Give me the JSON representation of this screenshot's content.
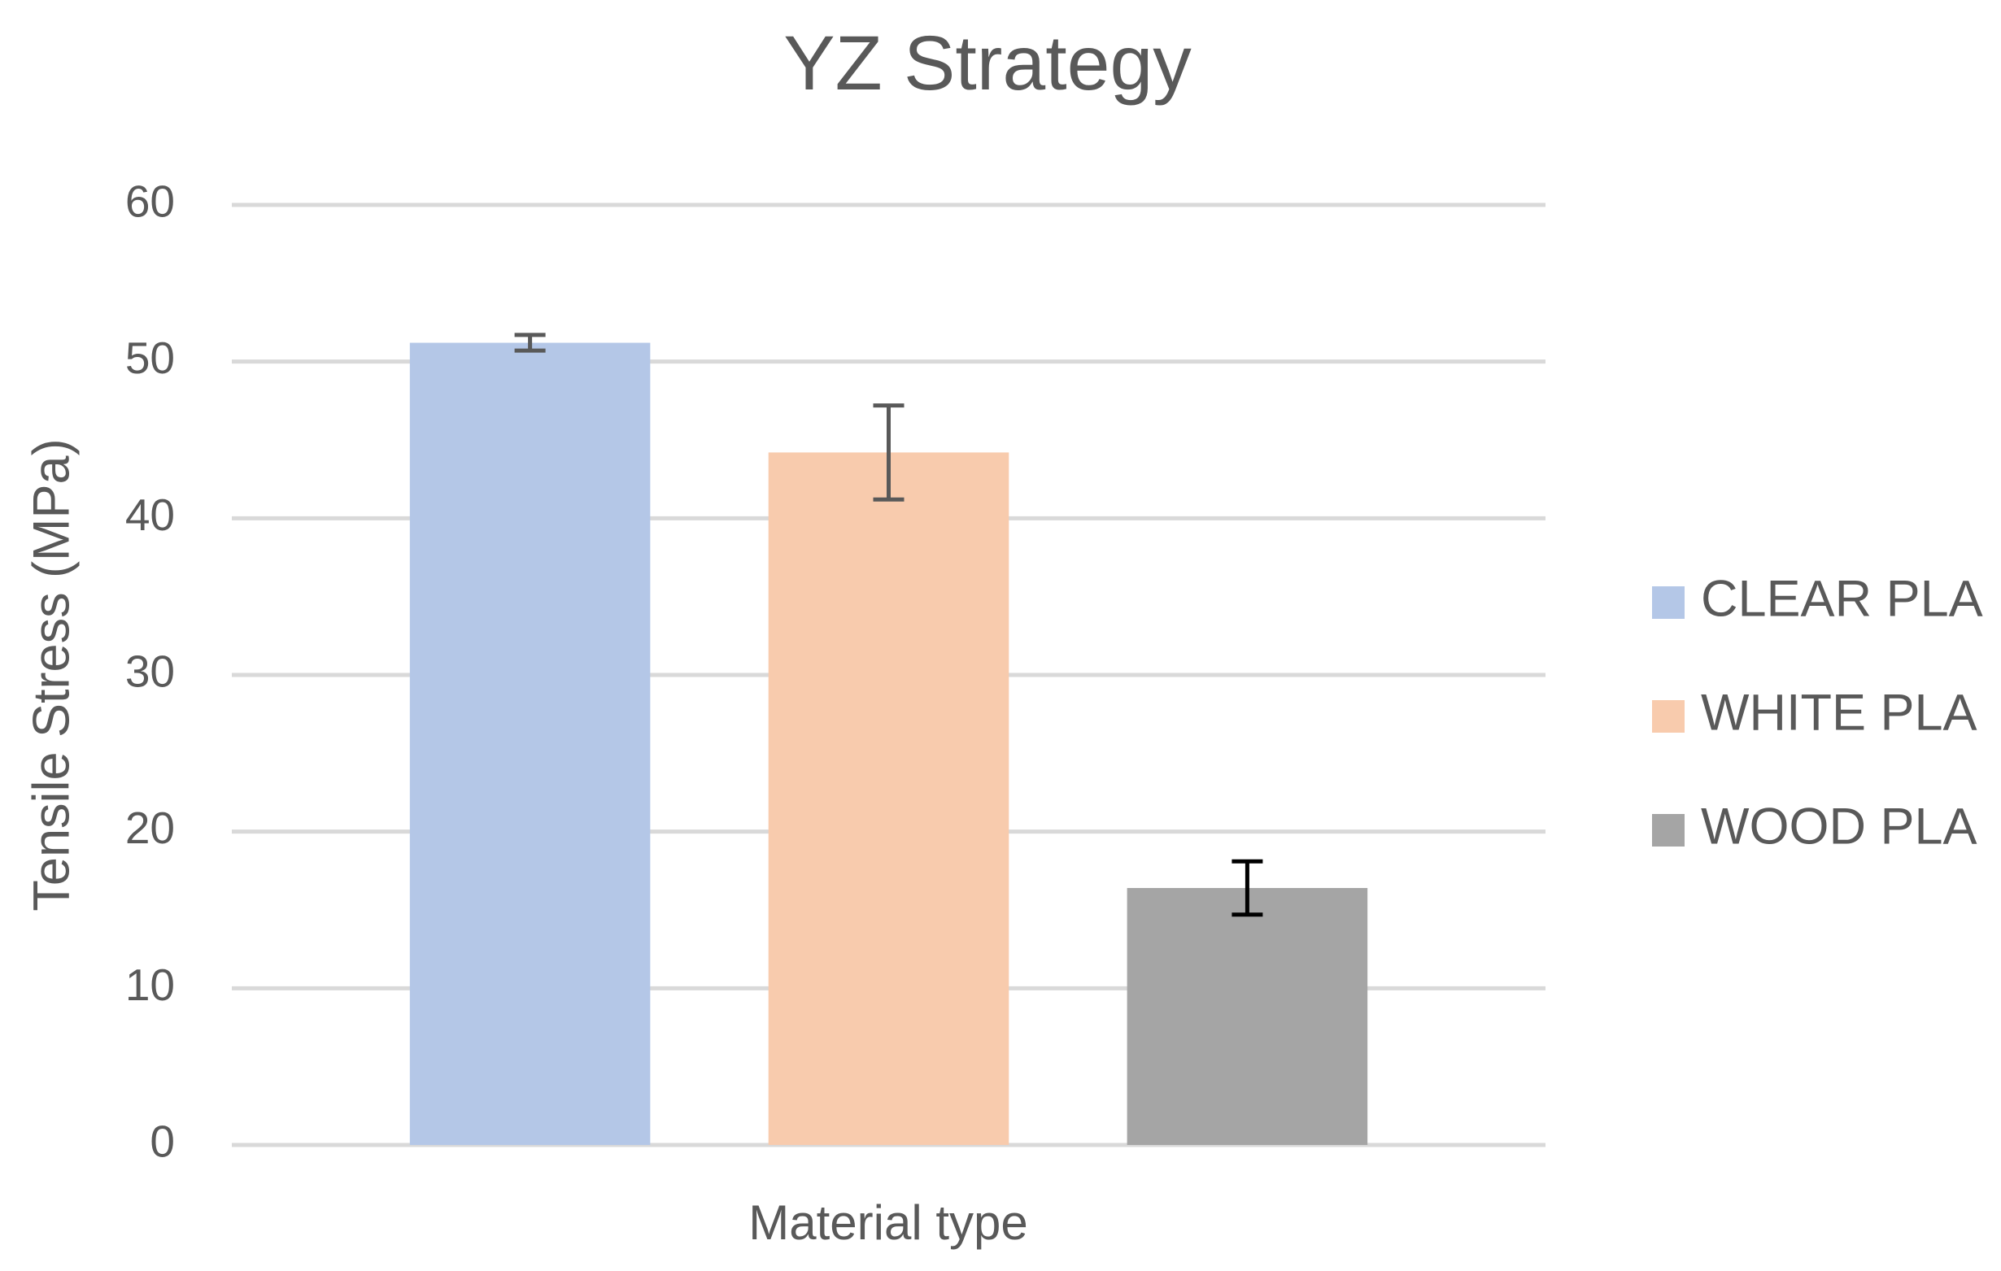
{
  "chart_data": {
    "type": "bar",
    "title": "YZ Strategy",
    "x_label": "Material type",
    "y_label": "Tensile Stress (MPa)",
    "categories": [
      null
    ],
    "series": [
      {
        "name": "CLEAR PLA",
        "color": "#b4c7e7",
        "error_color": "#595959",
        "values": [
          51.2
        ],
        "errors": [
          0.5
        ]
      },
      {
        "name": "WHITE PLA",
        "color": "#f8cbad",
        "error_color": "#595959",
        "values": [
          44.2
        ],
        "errors": [
          3.0
        ]
      },
      {
        "name": "WOOD PLA",
        "color": "#a5a5a5",
        "error_color": "#000000",
        "values": [
          16.4
        ],
        "errors": [
          1.7
        ]
      }
    ],
    "ylim": [
      0,
      60
    ],
    "yticks": [
      0,
      10,
      20,
      30,
      40,
      50,
      60
    ],
    "grid": true,
    "legend": "right"
  }
}
